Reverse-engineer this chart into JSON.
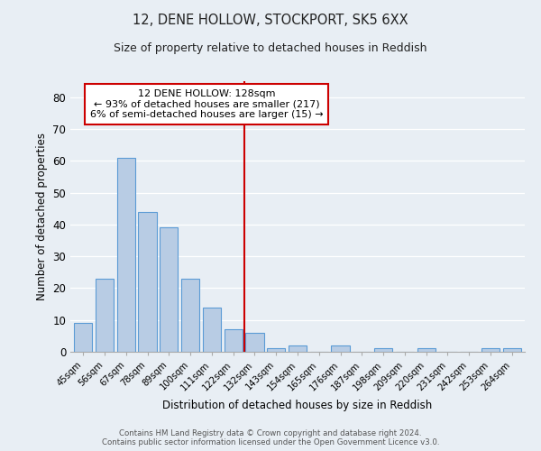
{
  "title": "12, DENE HOLLOW, STOCKPORT, SK5 6XX",
  "subtitle": "Size of property relative to detached houses in Reddish",
  "xlabel": "Distribution of detached houses by size in Reddish",
  "ylabel": "Number of detached properties",
  "bar_labels": [
    "45sqm",
    "56sqm",
    "67sqm",
    "78sqm",
    "89sqm",
    "100sqm",
    "111sqm",
    "122sqm",
    "132sqm",
    "143sqm",
    "154sqm",
    "165sqm",
    "176sqm",
    "187sqm",
    "198sqm",
    "209sqm",
    "220sqm",
    "231sqm",
    "242sqm",
    "253sqm",
    "264sqm"
  ],
  "bar_values": [
    9,
    23,
    61,
    44,
    39,
    23,
    14,
    7,
    6,
    1,
    2,
    0,
    2,
    0,
    1,
    0,
    1,
    0,
    0,
    1,
    1
  ],
  "bar_color": "#b8cce4",
  "bar_edge_color": "#5b9bd5",
  "vline_color": "#cc0000",
  "ylim": [
    0,
    85
  ],
  "yticks": [
    0,
    10,
    20,
    30,
    40,
    50,
    60,
    70,
    80
  ],
  "annotation_title": "12 DENE HOLLOW: 128sqm",
  "annotation_line1": "← 93% of detached houses are smaller (217)",
  "annotation_line2": "6% of semi-detached houses are larger (15) →",
  "annotation_box_color": "#ffffff",
  "annotation_border_color": "#cc0000",
  "footer_line1": "Contains HM Land Registry data © Crown copyright and database right 2024.",
  "footer_line2": "Contains public sector information licensed under the Open Government Licence v3.0.",
  "bg_color": "#e8eef4"
}
